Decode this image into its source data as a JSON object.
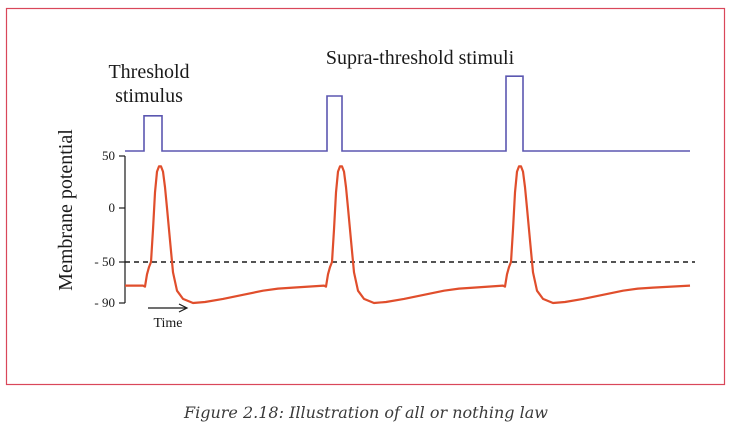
{
  "chart_data": {
    "type": "line",
    "title": "",
    "ylabel": "Membrane potential",
    "xlabel": "Time",
    "y_ticks": [
      "50",
      "0",
      "- 50",
      "- 90"
    ],
    "y_tick_values": [
      50,
      0,
      -50,
      -90
    ],
    "ylim": [
      -95,
      60
    ],
    "threshold_level": -50,
    "resting_potential": -73,
    "peak_potential": 40,
    "annotations": {
      "threshold_line1": "Threshold",
      "threshold_line2": "stimulus",
      "supra": "Supra-threshold stimuli"
    },
    "stimuli": [
      {
        "label": "threshold",
        "relative_height": 0.32
      },
      {
        "label": "supra-threshold",
        "relative_height": 0.5
      },
      {
        "label": "supra-threshold",
        "relative_height": 0.68
      }
    ],
    "action_potentials": 3,
    "colors": {
      "stimulus": "#5b57b0",
      "membrane": "#e04e2c",
      "threshold_line": "#1a1a1a",
      "border": "#d9475a"
    }
  },
  "caption": "Figure 2.18: Illustration of all or nothing law"
}
